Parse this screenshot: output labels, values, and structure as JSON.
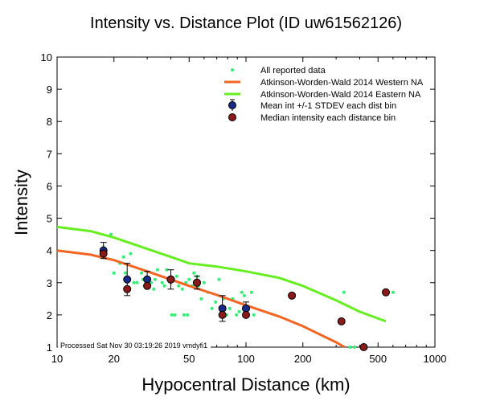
{
  "chart_data": {
    "type": "scatter",
    "title": "Intensity vs. Distance Plot (ID uw61562126)",
    "xlabel": "Hypocentral Distance (km)",
    "ylabel": "Intensity",
    "xscale": "log",
    "xlim": [
      10,
      1000
    ],
    "ylim": [
      1,
      10
    ],
    "xticks": [
      10,
      20,
      50,
      100,
      200,
      500,
      1000
    ],
    "yticks": [
      1,
      2,
      3,
      4,
      5,
      6,
      7,
      8,
      9,
      10
    ],
    "grid": false,
    "legend_position": "top-right",
    "footer": "Processed Sat Nov 30 03:19:26 2019 vmdyfi1",
    "series": [
      {
        "name": "All reported data",
        "kind": "points",
        "color": "#33ee77",
        "points": [
          [
            17.6,
            3.9
          ],
          [
            17.6,
            4.1
          ],
          [
            19.3,
            4.5
          ],
          [
            20,
            3.3
          ],
          [
            21.5,
            3.6
          ],
          [
            22.5,
            3.8
          ],
          [
            23,
            3.3
          ],
          [
            24.5,
            3.9
          ],
          [
            25.5,
            3.0
          ],
          [
            26.5,
            3.0
          ],
          [
            28,
            3.3
          ],
          [
            28.5,
            3.1
          ],
          [
            29,
            2.9
          ],
          [
            30,
            2.9
          ],
          [
            31.5,
            3.0
          ],
          [
            32.5,
            2.8
          ],
          [
            33,
            3.1
          ],
          [
            34,
            3.4
          ],
          [
            36,
            3.0
          ],
          [
            37,
            2.9
          ],
          [
            38,
            3.4
          ],
          [
            39.5,
            3.1
          ],
          [
            40,
            3.0
          ],
          [
            40.5,
            2.0
          ],
          [
            42,
            2.0
          ],
          [
            43,
            3.2
          ],
          [
            44,
            2.9
          ],
          [
            46,
            2.8
          ],
          [
            47,
            2.0
          ],
          [
            48,
            3.0
          ],
          [
            49,
            2.0
          ],
          [
            50,
            3.1
          ],
          [
            52,
            2.9
          ],
          [
            53,
            3.3
          ],
          [
            55,
            3.2
          ],
          [
            56,
            2.9
          ],
          [
            58,
            2.5
          ],
          [
            60,
            3.0
          ],
          [
            63,
            2.7
          ],
          [
            66,
            2.2
          ],
          [
            69,
            2.4
          ],
          [
            72,
            3.1
          ],
          [
            73,
            2.0
          ],
          [
            76,
            2.5
          ],
          [
            79,
            2.0
          ],
          [
            82,
            2.2
          ],
          [
            85,
            2.5
          ],
          [
            89,
            2.0
          ],
          [
            92,
            2.1
          ],
          [
            95,
            2.7
          ],
          [
            98,
            2.6
          ],
          [
            103,
            2.2
          ],
          [
            107,
            2.7
          ],
          [
            110,
            2.0
          ],
          [
            180,
            2.6
          ],
          [
            330,
            2.7
          ],
          [
            355,
            1.0
          ],
          [
            375,
            1.0
          ],
          [
            600,
            2.7
          ]
        ]
      },
      {
        "name": "Atkinson-Worden-Wald 2014 Western NA",
        "kind": "line",
        "color": "#f26522",
        "points": [
          [
            10,
            4.0
          ],
          [
            15,
            3.87
          ],
          [
            20,
            3.7
          ],
          [
            30,
            3.35
          ],
          [
            50,
            2.9
          ],
          [
            70,
            2.62
          ],
          [
            100,
            2.3
          ],
          [
            150,
            1.95
          ],
          [
            200,
            1.65
          ],
          [
            300,
            1.15
          ],
          [
            333,
            1.0
          ]
        ]
      },
      {
        "name": "Atkinson-Worden-Wald 2014 Eastern NA",
        "kind": "line",
        "color": "#66ee22",
        "points": [
          [
            10,
            4.73
          ],
          [
            15,
            4.6
          ],
          [
            20,
            4.4
          ],
          [
            30,
            4.05
          ],
          [
            40,
            3.8
          ],
          [
            50,
            3.6
          ],
          [
            70,
            3.5
          ],
          [
            100,
            3.35
          ],
          [
            150,
            3.15
          ],
          [
            200,
            2.9
          ],
          [
            300,
            2.45
          ],
          [
            400,
            2.1
          ],
          [
            550,
            1.8
          ]
        ]
      },
      {
        "name": "Mean int +/-1 STDEV each dist bin",
        "kind": "errorbars",
        "color": "#1a2a88",
        "points": [
          [
            17.6,
            4.0,
            0.25
          ],
          [
            23.5,
            3.1,
            0.5
          ],
          [
            30,
            3.1,
            0.25
          ],
          [
            40,
            3.1,
            0.3
          ],
          [
            55,
            3.0,
            0.2
          ],
          [
            75,
            2.2,
            0.4
          ],
          [
            100,
            2.2,
            0.2
          ]
        ]
      },
      {
        "name": "Median intensity each distance bin",
        "kind": "points",
        "color": "#8b1a1a",
        "points": [
          [
            17.6,
            3.9
          ],
          [
            23.5,
            2.8
          ],
          [
            30,
            2.9
          ],
          [
            40,
            3.1
          ],
          [
            55,
            3.0
          ],
          [
            75,
            2.0
          ],
          [
            100,
            2.0
          ],
          [
            175,
            2.6
          ],
          [
            320,
            1.8
          ],
          [
            420,
            1.0
          ],
          [
            550,
            2.7
          ]
        ]
      }
    ]
  }
}
